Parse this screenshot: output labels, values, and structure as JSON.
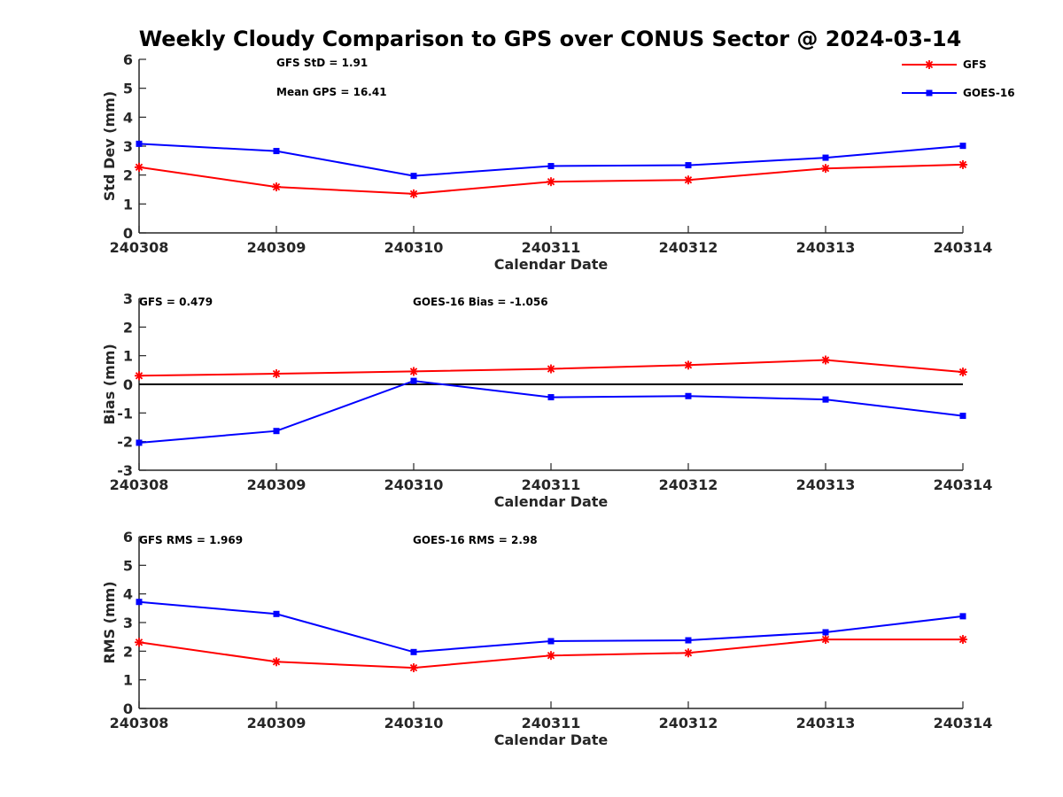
{
  "title": "Weekly Cloudy Comparison to GPS over CONUS Sector @ 2024-03-14",
  "legend": {
    "placement": "top-right",
    "entries": [
      {
        "label": "GFS",
        "color": "#ff0000",
        "marker": "asterisk"
      },
      {
        "label": "GOES-16",
        "color": "#0000ff",
        "marker": "square"
      }
    ]
  },
  "chart_data": [
    {
      "type": "line",
      "xlabel": "Calendar Date",
      "ylabel": "Std Dev (mm)",
      "categories": [
        "240308",
        "240309",
        "240310",
        "240311",
        "240312",
        "240313",
        "240314"
      ],
      "ylim": [
        0,
        6
      ],
      "yticks": [
        "0",
        "1",
        "2",
        "3",
        "4",
        "5",
        "6"
      ],
      "zero_line": false,
      "grid": false,
      "annotations": [
        "GFS StD = 1.91",
        "Mean GPS = 16.41"
      ],
      "series": [
        {
          "name": "GFS",
          "color": "#ff0000",
          "marker": "asterisk",
          "values": [
            2.27,
            1.59,
            1.35,
            1.77,
            1.83,
            2.23,
            2.36
          ]
        },
        {
          "name": "GOES-16",
          "color": "#0000ff",
          "marker": "square",
          "values": [
            3.08,
            2.83,
            1.97,
            2.31,
            2.34,
            2.6,
            3.01
          ]
        }
      ]
    },
    {
      "type": "line",
      "xlabel": "Calendar Date",
      "ylabel": "Bias (mm)",
      "categories": [
        "240308",
        "240309",
        "240310",
        "240311",
        "240312",
        "240313",
        "240314"
      ],
      "ylim": [
        -3,
        3
      ],
      "yticks": [
        "-3",
        "-2",
        "-1",
        "0",
        "1",
        "2",
        "3"
      ],
      "zero_line": true,
      "grid": false,
      "annotations": [
        "GFS = 0.479",
        "GOES-16 Bias  = -1.056"
      ],
      "series": [
        {
          "name": "GFS",
          "color": "#ff0000",
          "marker": "asterisk",
          "values": [
            0.3,
            0.37,
            0.45,
            0.54,
            0.67,
            0.85,
            0.43
          ]
        },
        {
          "name": "GOES-16",
          "color": "#0000ff",
          "marker": "square",
          "values": [
            -2.04,
            -1.63,
            0.12,
            -0.45,
            -0.41,
            -0.53,
            -1.1
          ]
        }
      ]
    },
    {
      "type": "line",
      "xlabel": "Calendar Date",
      "ylabel": "RMS (mm)",
      "categories": [
        "240308",
        "240309",
        "240310",
        "240311",
        "240312",
        "240313",
        "240314"
      ],
      "ylim": [
        0,
        6
      ],
      "yticks": [
        "0",
        "1",
        "2",
        "3",
        "4",
        "5",
        "6"
      ],
      "zero_line": false,
      "grid": false,
      "annotations": [
        "GFS RMS = 1.969",
        "GOES-16 RMS = 2.98"
      ],
      "series": [
        {
          "name": "GFS",
          "color": "#ff0000",
          "marker": "asterisk",
          "values": [
            2.31,
            1.63,
            1.42,
            1.85,
            1.94,
            2.41,
            2.41
          ]
        },
        {
          "name": "GOES-16",
          "color": "#0000ff",
          "marker": "square",
          "values": [
            3.72,
            3.3,
            1.97,
            2.35,
            2.38,
            2.66,
            3.22
          ]
        }
      ]
    }
  ]
}
